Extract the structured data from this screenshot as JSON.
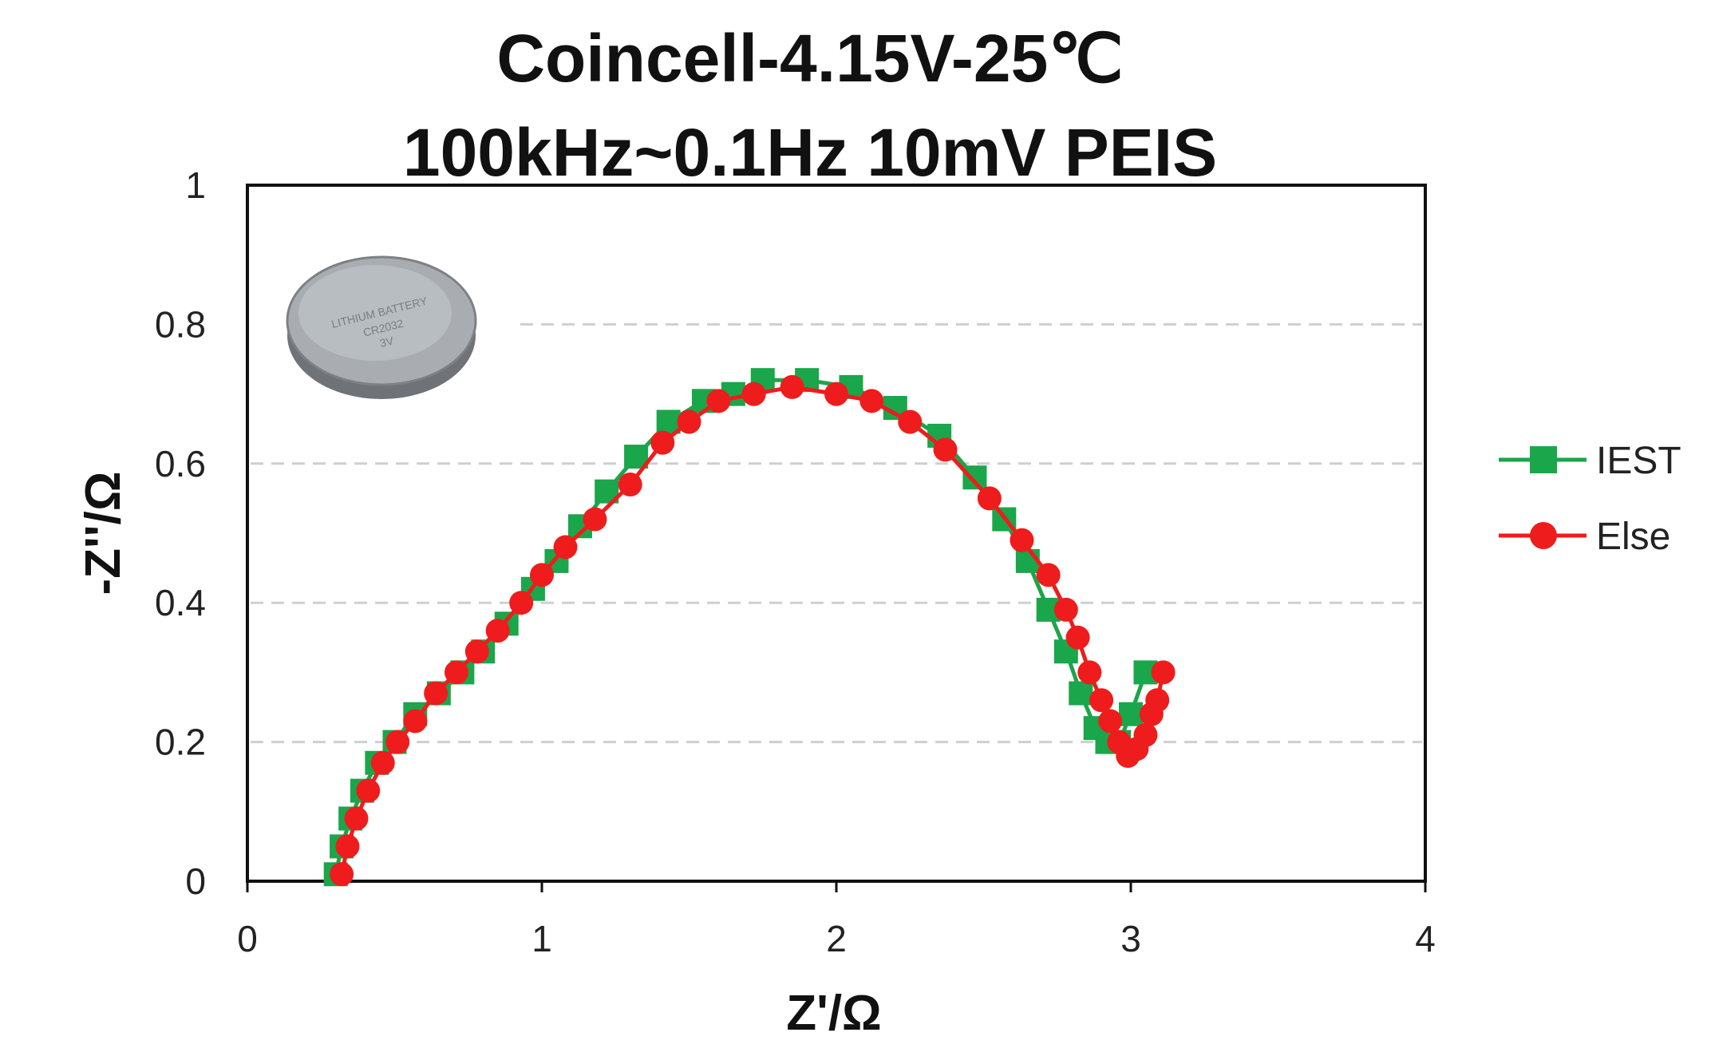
{
  "chart_data": {
    "type": "scatter",
    "title": [
      "Coincell-4.15V-25℃",
      "100kHz~0.1Hz 10mV PEIS"
    ],
    "xlabel": "Z'/Ω",
    "ylabel": "-Z''/Ω",
    "xlim": [
      0,
      4
    ],
    "ylim": [
      0,
      1
    ],
    "x_ticks": [
      "0",
      "1",
      "2",
      "3",
      "4"
    ],
    "y_ticks": [
      "0",
      "0.2",
      "0.4",
      "0.6",
      "0.8",
      "1"
    ],
    "grid": "horizontal-dashed",
    "legend_position": "right",
    "series": [
      {
        "name": "IEST",
        "color": "#1aa64a",
        "marker": "square",
        "points": [
          [
            0.3,
            0.01
          ],
          [
            0.32,
            0.05
          ],
          [
            0.35,
            0.09
          ],
          [
            0.39,
            0.13
          ],
          [
            0.44,
            0.17
          ],
          [
            0.5,
            0.2
          ],
          [
            0.57,
            0.24
          ],
          [
            0.65,
            0.27
          ],
          [
            0.73,
            0.3
          ],
          [
            0.8,
            0.33
          ],
          [
            0.88,
            0.37
          ],
          [
            0.97,
            0.42
          ],
          [
            1.05,
            0.46
          ],
          [
            1.13,
            0.51
          ],
          [
            1.22,
            0.56
          ],
          [
            1.32,
            0.61
          ],
          [
            1.43,
            0.66
          ],
          [
            1.55,
            0.69
          ],
          [
            1.65,
            0.7
          ],
          [
            1.75,
            0.72
          ],
          [
            1.9,
            0.72
          ],
          [
            2.05,
            0.71
          ],
          [
            2.2,
            0.68
          ],
          [
            2.35,
            0.64
          ],
          [
            2.47,
            0.58
          ],
          [
            2.57,
            0.52
          ],
          [
            2.65,
            0.46
          ],
          [
            2.72,
            0.39
          ],
          [
            2.78,
            0.33
          ],
          [
            2.83,
            0.27
          ],
          [
            2.88,
            0.22
          ],
          [
            2.92,
            0.2
          ],
          [
            2.96,
            0.2
          ],
          [
            3.0,
            0.24
          ],
          [
            3.05,
            0.3
          ]
        ]
      },
      {
        "name": "Else",
        "color": "#ee1c1c",
        "marker": "circle",
        "points": [
          [
            0.32,
            0.01
          ],
          [
            0.34,
            0.05
          ],
          [
            0.37,
            0.09
          ],
          [
            0.41,
            0.13
          ],
          [
            0.46,
            0.17
          ],
          [
            0.51,
            0.2
          ],
          [
            0.57,
            0.23
          ],
          [
            0.64,
            0.27
          ],
          [
            0.71,
            0.3
          ],
          [
            0.78,
            0.33
          ],
          [
            0.85,
            0.36
          ],
          [
            0.93,
            0.4
          ],
          [
            1.0,
            0.44
          ],
          [
            1.08,
            0.48
          ],
          [
            1.18,
            0.52
          ],
          [
            1.3,
            0.57
          ],
          [
            1.41,
            0.63
          ],
          [
            1.5,
            0.66
          ],
          [
            1.6,
            0.69
          ],
          [
            1.72,
            0.7
          ],
          [
            1.85,
            0.71
          ],
          [
            2.0,
            0.7
          ],
          [
            2.12,
            0.69
          ],
          [
            2.25,
            0.66
          ],
          [
            2.37,
            0.62
          ],
          [
            2.52,
            0.55
          ],
          [
            2.63,
            0.49
          ],
          [
            2.72,
            0.44
          ],
          [
            2.78,
            0.39
          ],
          [
            2.82,
            0.35
          ],
          [
            2.86,
            0.3
          ],
          [
            2.9,
            0.26
          ],
          [
            2.93,
            0.23
          ],
          [
            2.96,
            0.2
          ],
          [
            2.99,
            0.18
          ],
          [
            3.02,
            0.19
          ],
          [
            3.05,
            0.21
          ],
          [
            3.07,
            0.24
          ],
          [
            3.09,
            0.26
          ],
          [
            3.11,
            0.3
          ]
        ]
      }
    ]
  }
}
